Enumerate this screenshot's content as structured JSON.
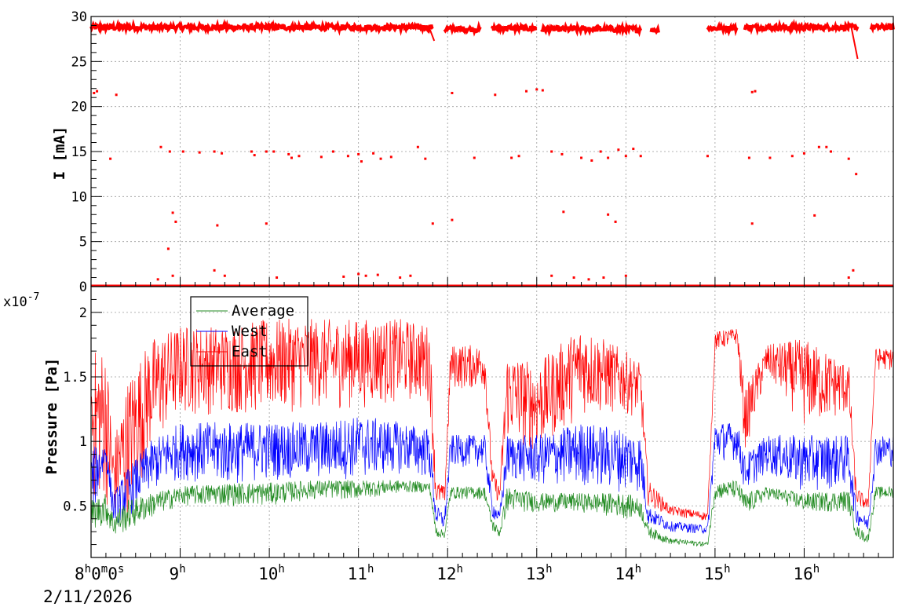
{
  "chart_data": [
    {
      "type": "scatter",
      "ylabel": "I [mA]",
      "ylim": [
        0,
        30
      ],
      "yticks": [
        "0",
        "5",
        "10",
        "15",
        "20",
        "25",
        "30"
      ],
      "x_time_range": [
        "08:00",
        "17:00"
      ],
      "grid": true,
      "series": [
        {
          "color": "#ff0000",
          "main_level": [
            {
              "x": [
                "08:00",
                "11:50"
              ],
              "y": 28.8
            },
            {
              "x": [
                "11:58",
                "12:22"
              ],
              "y": 28.6
            },
            {
              "x": [
                "12:30",
                "13:00"
              ],
              "y": 28.7
            },
            {
              "x": [
                "13:03",
                "14:10"
              ],
              "y": 28.6
            },
            {
              "x": [
                "14:17",
                "14:22"
              ],
              "y": 28.5
            },
            {
              "x": [
                "14:55",
                "15:15"
              ],
              "y": 28.7
            },
            {
              "x": [
                "15:20",
                "16:36"
              ],
              "y": 28.8
            },
            {
              "x": [
                "16:45",
                "17:00"
              ],
              "y": 28.8
            }
          ],
          "drops": [
            {
              "x": [
                "11:48",
                "11:51"
              ],
              "y": [
                28.6,
                27.3
              ]
            },
            {
              "x": [
                "16:32",
                "16:36"
              ],
              "y": [
                28.6,
                25.3
              ]
            }
          ],
          "zero_level": 0,
          "outliers": [
            [
              "08:02",
              21.5
            ],
            [
              "08:04",
              21.7
            ],
            [
              "08:17",
              21.3
            ],
            [
              "08:13",
              14.2
            ],
            [
              "08:47",
              15.5
            ],
            [
              "08:53",
              15.0
            ],
            [
              "09:02",
              15.0
            ],
            [
              "09:13",
              14.9
            ],
            [
              "09:23",
              15.0
            ],
            [
              "09:28",
              14.8
            ],
            [
              "09:48",
              15.0
            ],
            [
              "09:50",
              14.6
            ],
            [
              "09:58",
              15.0
            ],
            [
              "10:03",
              15.0
            ],
            [
              "10:13",
              14.7
            ],
            [
              "10:15",
              14.3
            ],
            [
              "10:20",
              14.5
            ],
            [
              "10:35",
              14.4
            ],
            [
              "10:43",
              15.0
            ],
            [
              "10:53",
              14.5
            ],
            [
              "11:00",
              14.7
            ],
            [
              "11:02",
              13.9
            ],
            [
              "11:10",
              14.8
            ],
            [
              "11:15",
              14.2
            ],
            [
              "11:22",
              14.4
            ],
            [
              "11:40",
              15.5
            ],
            [
              "11:45",
              14.2
            ],
            [
              "12:18",
              14.3
            ],
            [
              "12:43",
              14.3
            ],
            [
              "12:48",
              14.5
            ],
            [
              "13:10",
              15.0
            ],
            [
              "13:17",
              14.7
            ],
            [
              "13:30",
              14.3
            ],
            [
              "13:37",
              14.0
            ],
            [
              "13:43",
              15.0
            ],
            [
              "13:48",
              14.3
            ],
            [
              "13:55",
              15.2
            ],
            [
              "14:00",
              14.5
            ],
            [
              "14:05",
              15.3
            ],
            [
              "14:10",
              14.5
            ],
            [
              "14:55",
              14.5
            ],
            [
              "15:23",
              14.3
            ],
            [
              "15:37",
              14.3
            ],
            [
              "15:52",
              14.5
            ],
            [
              "16:00",
              14.8
            ],
            [
              "16:10",
              15.5
            ],
            [
              "16:15",
              15.5
            ],
            [
              "16:18",
              15.0
            ],
            [
              "16:30",
              14.2
            ],
            [
              "16:35",
              12.5
            ],
            [
              "08:55",
              8.2
            ],
            [
              "08:57",
              7.2
            ],
            [
              "09:25",
              6.8
            ],
            [
              "09:58",
              7.0
            ],
            [
              "13:18",
              8.3
            ],
            [
              "13:48",
              8.0
            ],
            [
              "13:53",
              7.2
            ],
            [
              "15:25",
              7.0
            ],
            [
              "16:07",
              7.9
            ],
            [
              "11:50",
              7.0
            ],
            [
              "12:03",
              7.4
            ],
            [
              "08:52",
              4.2
            ],
            [
              "08:45",
              0.8
            ],
            [
              "08:55",
              1.2
            ],
            [
              "09:23",
              1.8
            ],
            [
              "09:30",
              1.2
            ],
            [
              "10:05",
              1.0
            ],
            [
              "10:50",
              1.1
            ],
            [
              "11:00",
              1.4
            ],
            [
              "11:05",
              1.2
            ],
            [
              "11:13",
              1.3
            ],
            [
              "11:28",
              1.0
            ],
            [
              "11:35",
              1.2
            ],
            [
              "13:10",
              1.2
            ],
            [
              "13:25",
              1.0
            ],
            [
              "13:35",
              0.8
            ],
            [
              "13:45",
              1.0
            ],
            [
              "14:00",
              1.2
            ],
            [
              "16:30",
              1.0
            ],
            [
              "16:33",
              1.8
            ],
            [
              "12:03",
              21.5
            ],
            [
              "12:32",
              21.3
            ],
            [
              "12:53",
              21.7
            ],
            [
              "13:00",
              21.9
            ],
            [
              "13:04",
              21.8
            ],
            [
              "15:25",
              21.6
            ],
            [
              "15:27",
              21.7
            ]
          ]
        }
      ]
    },
    {
      "type": "line",
      "ylabel": "Pressure [Pa]",
      "y_exponent": "x10",
      "y_exponent_power": "-7",
      "ylim": [
        0.1,
        2.2
      ],
      "yticks": [
        "0.5",
        "1",
        "1.5",
        "2"
      ],
      "grid": true,
      "legend": "top-left",
      "x_time_range": [
        "08:00",
        "17:00"
      ],
      "x_first_label": {
        "hour": "8",
        "minute": "0",
        "second": "0",
        "date": "2/11/2026"
      },
      "x_hour_labels": [
        "9",
        "10",
        "11",
        "12",
        "13",
        "14",
        "15",
        "16"
      ],
      "x_units": {
        "h": "h",
        "m": "m",
        "s": "s"
      },
      "series": [
        {
          "name": "Average",
          "color": "#228b22",
          "profile": [
            [
              "08:00",
              0.3,
              0.55
            ],
            [
              "08:10",
              0.35,
              0.6
            ],
            [
              "08:15",
              0.25,
              0.45
            ],
            [
              "08:25",
              0.3,
              0.55
            ],
            [
              "08:40",
              0.4,
              0.6
            ],
            [
              "09:00",
              0.5,
              0.65
            ],
            [
              "09:30",
              0.5,
              0.68
            ],
            [
              "10:00",
              0.5,
              0.68
            ],
            [
              "10:30",
              0.55,
              0.7
            ],
            [
              "11:00",
              0.55,
              0.7
            ],
            [
              "11:30",
              0.6,
              0.7
            ],
            [
              "11:48",
              0.6,
              0.68
            ],
            [
              "11:52",
              0.25,
              0.35
            ],
            [
              "11:58",
              0.25,
              0.3
            ],
            [
              "12:02",
              0.55,
              0.65
            ],
            [
              "12:25",
              0.55,
              0.65
            ],
            [
              "12:30",
              0.3,
              0.4
            ],
            [
              "12:35",
              0.25,
              0.32
            ],
            [
              "12:40",
              0.45,
              0.65
            ],
            [
              "13:00",
              0.45,
              0.6
            ],
            [
              "13:30",
              0.45,
              0.6
            ],
            [
              "14:00",
              0.4,
              0.6
            ],
            [
              "14:10",
              0.4,
              0.55
            ],
            [
              "14:15",
              0.25,
              0.35
            ],
            [
              "14:30",
              0.2,
              0.25
            ],
            [
              "14:55",
              0.18,
              0.22
            ],
            [
              "15:00",
              0.55,
              0.68
            ],
            [
              "15:15",
              0.55,
              0.7
            ],
            [
              "15:20",
              0.4,
              0.6
            ],
            [
              "15:35",
              0.55,
              0.65
            ],
            [
              "16:00",
              0.45,
              0.6
            ],
            [
              "16:30",
              0.45,
              0.62
            ],
            [
              "16:35",
              0.25,
              0.35
            ],
            [
              "16:43",
              0.2,
              0.28
            ],
            [
              "16:48",
              0.55,
              0.65
            ],
            [
              "17:00",
              0.55,
              0.65
            ]
          ]
        },
        {
          "name": "West",
          "color": "#0000ff",
          "profile": [
            [
              "08:00",
              0.35,
              0.95
            ],
            [
              "08:10",
              0.8,
              1.0
            ],
            [
              "08:15",
              0.35,
              0.6
            ],
            [
              "08:25",
              0.4,
              0.8
            ],
            [
              "08:40",
              0.6,
              1.0
            ],
            [
              "09:00",
              0.7,
              1.15
            ],
            [
              "09:30",
              0.65,
              1.15
            ],
            [
              "10:00",
              0.7,
              1.15
            ],
            [
              "10:30",
              0.7,
              1.15
            ],
            [
              "11:00",
              0.7,
              1.2
            ],
            [
              "11:30",
              0.75,
              1.15
            ],
            [
              "11:48",
              0.7,
              1.1
            ],
            [
              "11:52",
              0.35,
              0.5
            ],
            [
              "11:58",
              0.3,
              0.45
            ],
            [
              "12:02",
              0.8,
              1.05
            ],
            [
              "12:25",
              0.8,
              1.05
            ],
            [
              "12:30",
              0.4,
              0.55
            ],
            [
              "12:35",
              0.35,
              0.45
            ],
            [
              "12:40",
              0.7,
              1.05
            ],
            [
              "13:00",
              0.65,
              1.05
            ],
            [
              "13:30",
              0.65,
              1.15
            ],
            [
              "14:00",
              0.6,
              1.1
            ],
            [
              "14:10",
              0.6,
              1.05
            ],
            [
              "14:15",
              0.35,
              0.5
            ],
            [
              "14:30",
              0.3,
              0.38
            ],
            [
              "14:55",
              0.28,
              0.35
            ],
            [
              "15:00",
              0.85,
              1.15
            ],
            [
              "15:15",
              0.85,
              1.15
            ],
            [
              "15:20",
              0.6,
              0.9
            ],
            [
              "15:35",
              0.75,
              1.05
            ],
            [
              "16:00",
              0.6,
              1.05
            ],
            [
              "16:30",
              0.65,
              1.05
            ],
            [
              "16:35",
              0.35,
              0.5
            ],
            [
              "16:43",
              0.3,
              0.4
            ],
            [
              "16:48",
              0.8,
              1.05
            ],
            [
              "17:00",
              0.8,
              1.05
            ]
          ]
        },
        {
          "name": "East",
          "color": "#ff0000",
          "profile": [
            [
              "08:00",
              0.5,
              1.7
            ],
            [
              "08:10",
              0.5,
              1.75
            ],
            [
              "08:15",
              0.4,
              1.0
            ],
            [
              "08:25",
              0.4,
              1.5
            ],
            [
              "08:40",
              0.9,
              1.8
            ],
            [
              "09:00",
              1.2,
              1.9
            ],
            [
              "09:30",
              1.2,
              1.9
            ],
            [
              "10:00",
              1.2,
              1.95
            ],
            [
              "10:30",
              1.25,
              1.95
            ],
            [
              "11:00",
              1.25,
              1.95
            ],
            [
              "11:30",
              1.3,
              1.95
            ],
            [
              "11:48",
              1.3,
              1.9
            ],
            [
              "11:52",
              0.5,
              0.7
            ],
            [
              "11:58",
              0.5,
              0.65
            ],
            [
              "12:02",
              1.4,
              1.75
            ],
            [
              "12:25",
              1.4,
              1.75
            ],
            [
              "12:30",
              0.6,
              0.8
            ],
            [
              "12:35",
              0.5,
              0.65
            ],
            [
              "12:40",
              1.0,
              1.7
            ],
            [
              "13:00",
              0.9,
              1.6
            ],
            [
              "13:30",
              1.2,
              1.9
            ],
            [
              "14:00",
              1.2,
              1.7
            ],
            [
              "14:10",
              1.2,
              1.6
            ],
            [
              "14:15",
              0.5,
              0.7
            ],
            [
              "14:30",
              0.42,
              0.5
            ],
            [
              "14:55",
              0.38,
              0.45
            ],
            [
              "15:00",
              1.7,
              1.85
            ],
            [
              "15:15",
              1.75,
              1.88
            ],
            [
              "15:20",
              0.9,
              1.4
            ],
            [
              "15:35",
              1.5,
              1.75
            ],
            [
              "16:00",
              1.1,
              1.8
            ],
            [
              "16:30",
              1.2,
              1.6
            ],
            [
              "16:35",
              0.5,
              0.65
            ],
            [
              "16:43",
              0.45,
              0.55
            ],
            [
              "16:48",
              1.55,
              1.72
            ],
            [
              "17:00",
              1.55,
              1.72
            ]
          ]
        }
      ]
    }
  ]
}
